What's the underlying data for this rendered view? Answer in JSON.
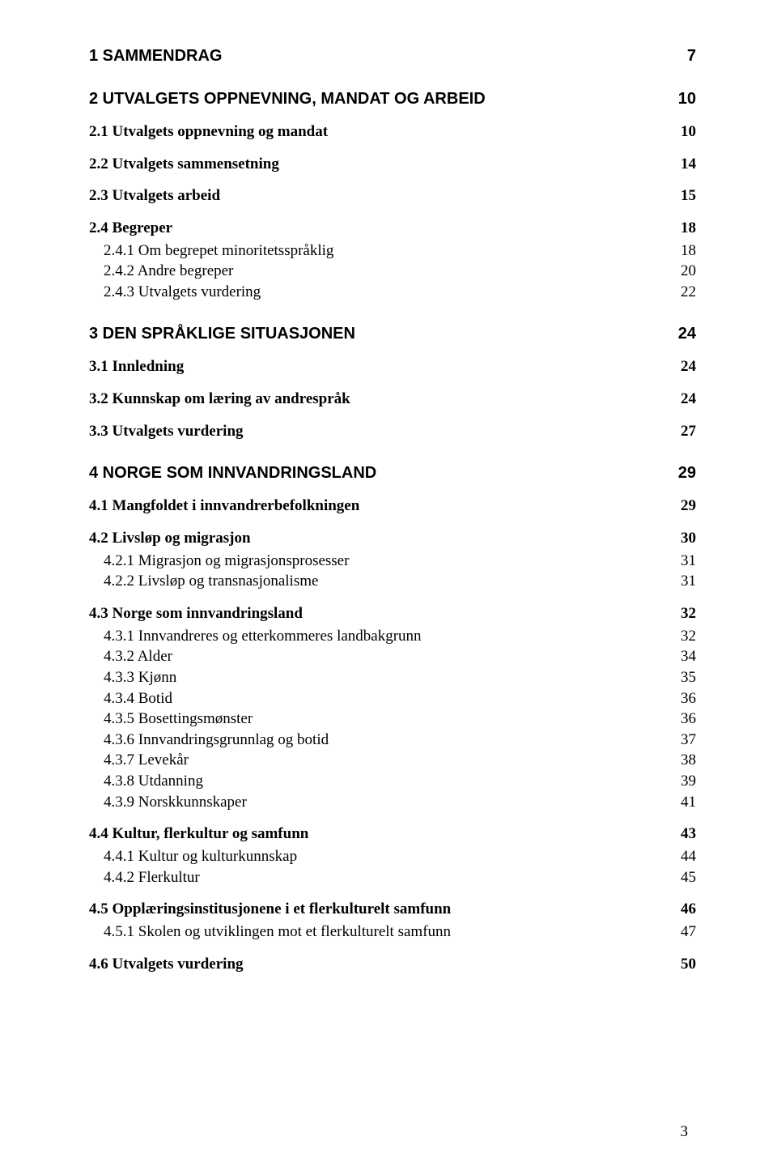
{
  "toc": [
    {
      "level": "h1",
      "label": "1 SAMMENDRAG",
      "page": "7",
      "first": true
    },
    {
      "level": "h1",
      "label": "2 UTVALGETS OPPNEVNING, MANDAT OG ARBEID",
      "page": "10"
    },
    {
      "level": "h2",
      "label": "2.1 Utvalgets oppnevning og mandat",
      "page": "10"
    },
    {
      "level": "h2",
      "label": "2.2 Utvalgets sammensetning",
      "page": "14"
    },
    {
      "level": "h2",
      "label": "2.3 Utvalgets arbeid",
      "page": "15"
    },
    {
      "level": "h2",
      "label": "2.4 Begreper",
      "page": "18"
    },
    {
      "level": "h3",
      "label": "2.4.1 Om begrepet minoritetsspråklig",
      "page": "18"
    },
    {
      "level": "h3",
      "label": "2.4.2 Andre begreper",
      "page": "20"
    },
    {
      "level": "h3",
      "label": "2.4.3 Utvalgets vurdering",
      "page": "22"
    },
    {
      "level": "h1",
      "label": "3 DEN SPRÅKLIGE SITUASJONEN",
      "page": "24"
    },
    {
      "level": "h2",
      "label": "3.1 Innledning",
      "page": "24"
    },
    {
      "level": "h2",
      "label": "3.2 Kunnskap om læring av andrespråk",
      "page": "24"
    },
    {
      "level": "h2",
      "label": "3.3 Utvalgets vurdering",
      "page": "27"
    },
    {
      "level": "h1",
      "label": "4 NORGE SOM INNVANDRINGSLAND",
      "page": "29"
    },
    {
      "level": "h2",
      "label": "4.1 Mangfoldet i innvandrerbefolkningen",
      "page": "29"
    },
    {
      "level": "h2",
      "label": "4.2 Livsløp og migrasjon",
      "page": "30"
    },
    {
      "level": "h3",
      "label": "4.2.1 Migrasjon og migrasjonsprosesser",
      "page": "31"
    },
    {
      "level": "h3",
      "label": "4.2.2 Livsløp og transnasjonalisme",
      "page": "31"
    },
    {
      "level": "h2",
      "label": "4.3 Norge som innvandringsland",
      "page": "32"
    },
    {
      "level": "h3",
      "label": "4.3.1 Innvandreres og etterkommeres landbakgrunn",
      "page": "32"
    },
    {
      "level": "h3",
      "label": "4.3.2 Alder",
      "page": "34"
    },
    {
      "level": "h3",
      "label": "4.3.3 Kjønn",
      "page": "35"
    },
    {
      "level": "h3",
      "label": "4.3.4 Botid",
      "page": "36"
    },
    {
      "level": "h3",
      "label": "4.3.5 Bosettingsmønster",
      "page": "36"
    },
    {
      "level": "h3",
      "label": "4.3.6 Innvandringsgrunnlag og botid",
      "page": "37"
    },
    {
      "level": "h3",
      "label": "4.3.7 Levekår",
      "page": "38"
    },
    {
      "level": "h3",
      "label": "4.3.8 Utdanning",
      "page": "39"
    },
    {
      "level": "h3",
      "label": "4.3.9 Norskkunnskaper",
      "page": "41"
    },
    {
      "level": "h2",
      "label": "4.4 Kultur, flerkultur og samfunn",
      "page": "43"
    },
    {
      "level": "h3",
      "label": "4.4.1 Kultur og kulturkunnskap",
      "page": "44"
    },
    {
      "level": "h3",
      "label": "4.4.2 Flerkultur",
      "page": "45"
    },
    {
      "level": "h2",
      "label": "4.5 Opplæringsinstitusjonene i et flerkulturelt samfunn",
      "page": "46"
    },
    {
      "level": "h3",
      "label": "4.5.1 Skolen og utviklingen mot et flerkulturelt samfunn",
      "page": "47"
    },
    {
      "level": "h2",
      "label": "4.6 Utvalgets vurdering",
      "page": "50"
    }
  ],
  "page_number": "3"
}
